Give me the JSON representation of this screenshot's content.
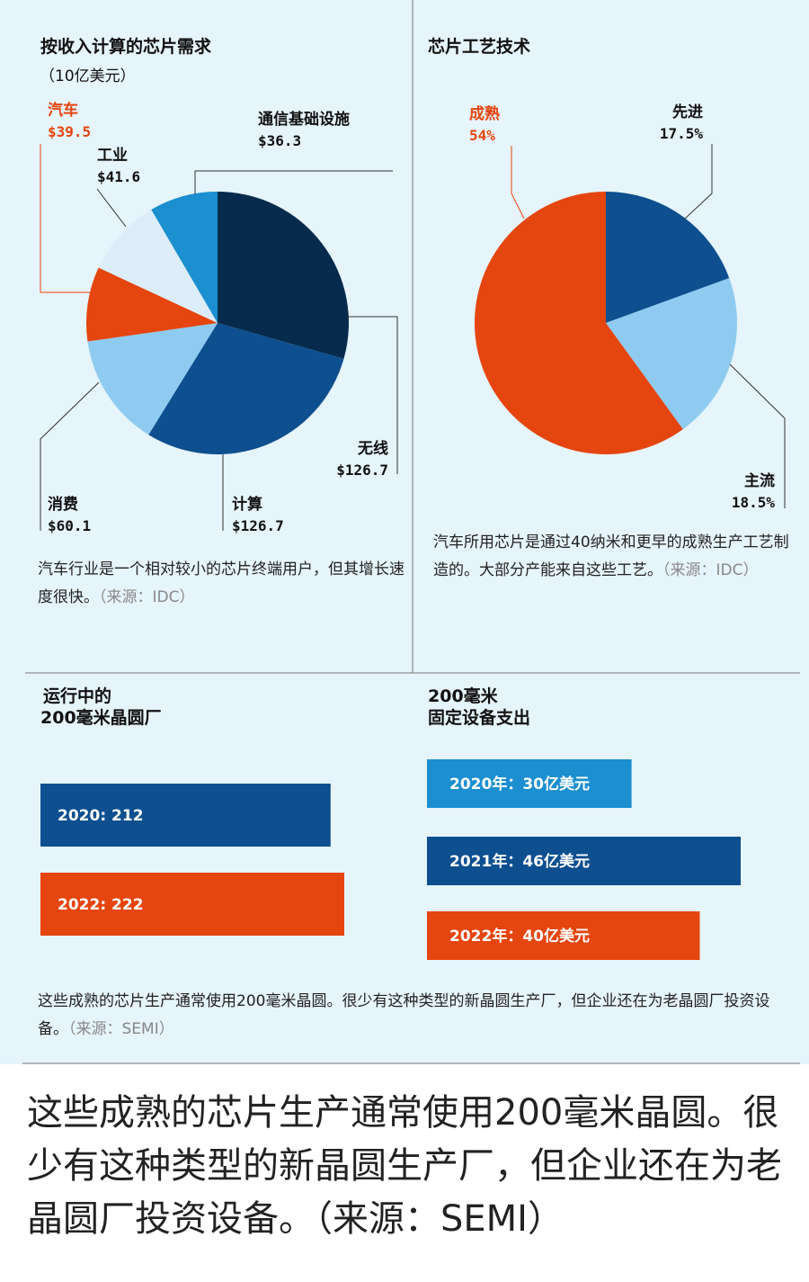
{
  "chart_data": [
    {
      "type": "pie",
      "title": "按收入计算的芯片需求",
      "subtitle": "（10亿美元）",
      "categories": [
        "无线",
        "计算",
        "消费",
        "汽车",
        "工业",
        "通信基础设施"
      ],
      "values": [
        126.7,
        126.7,
        60.1,
        39.5,
        41.6,
        36.3
      ],
      "value_labels": [
        "$126.7",
        "$126.7",
        "$60.1",
        "$39.5",
        "$41.6",
        "$36.3"
      ],
      "colors": [
        "#062b4d",
        "#0d4f8f",
        "#8fcbf0",
        "#e5450e",
        "#dcedf9",
        "#1b8fd0"
      ],
      "caption": {
        "text": "汽车行业是一个相对较小的芯片终端用户，但其增长速度很快。",
        "source": "（来源：IDC）"
      }
    },
    {
      "type": "pie",
      "title": "芯片工艺技术",
      "categories": [
        "先进",
        "主流",
        "成熟"
      ],
      "values": [
        17.5,
        18.5,
        54
      ],
      "value_labels": [
        "17.5%",
        "18.5%",
        "54%"
      ],
      "colors": [
        "#0d4f8f",
        "#8fcbf0",
        "#e5450e"
      ],
      "caption": {
        "text": "汽车所用芯片是通过40纳米和更早的成熟生产工艺制造的。大部分产能来自这些工艺。",
        "source": "（来源：IDC）"
      }
    },
    {
      "type": "hbar",
      "title": [
        "运行中的",
        "200毫米晶圆厂"
      ],
      "values": [
        212,
        222
      ],
      "value_labels": [
        "2020: 212",
        "2022: 222"
      ],
      "colors": [
        "#0d4f8f",
        "#e5450e"
      ]
    },
    {
      "type": "hbar",
      "title": [
        "200毫米",
        "固定设备支出"
      ],
      "values": [
        30,
        46,
        40
      ],
      "value_labels": [
        "2020年：30亿美元",
        "2021年：46亿美元",
        "2022年：40亿美元"
      ],
      "colors": [
        "#1b8fd0",
        "#0d4f8f",
        "#e5450e"
      ]
    }
  ],
  "bar_caption": {
    "text": "这些成熟的芯片生产通常使用200毫米晶圆。很少有这种类型的新晶圆生产厂，但企业还在为老晶圆厂投资设备。",
    "source": "（来源：SEMI）"
  },
  "footer": "这些成熟的芯片生产通常使用200毫米晶圆。很少有这种类型的新晶圆生产厂，但企业还在为老晶圆厂投资设备。（来源：SEMI）"
}
